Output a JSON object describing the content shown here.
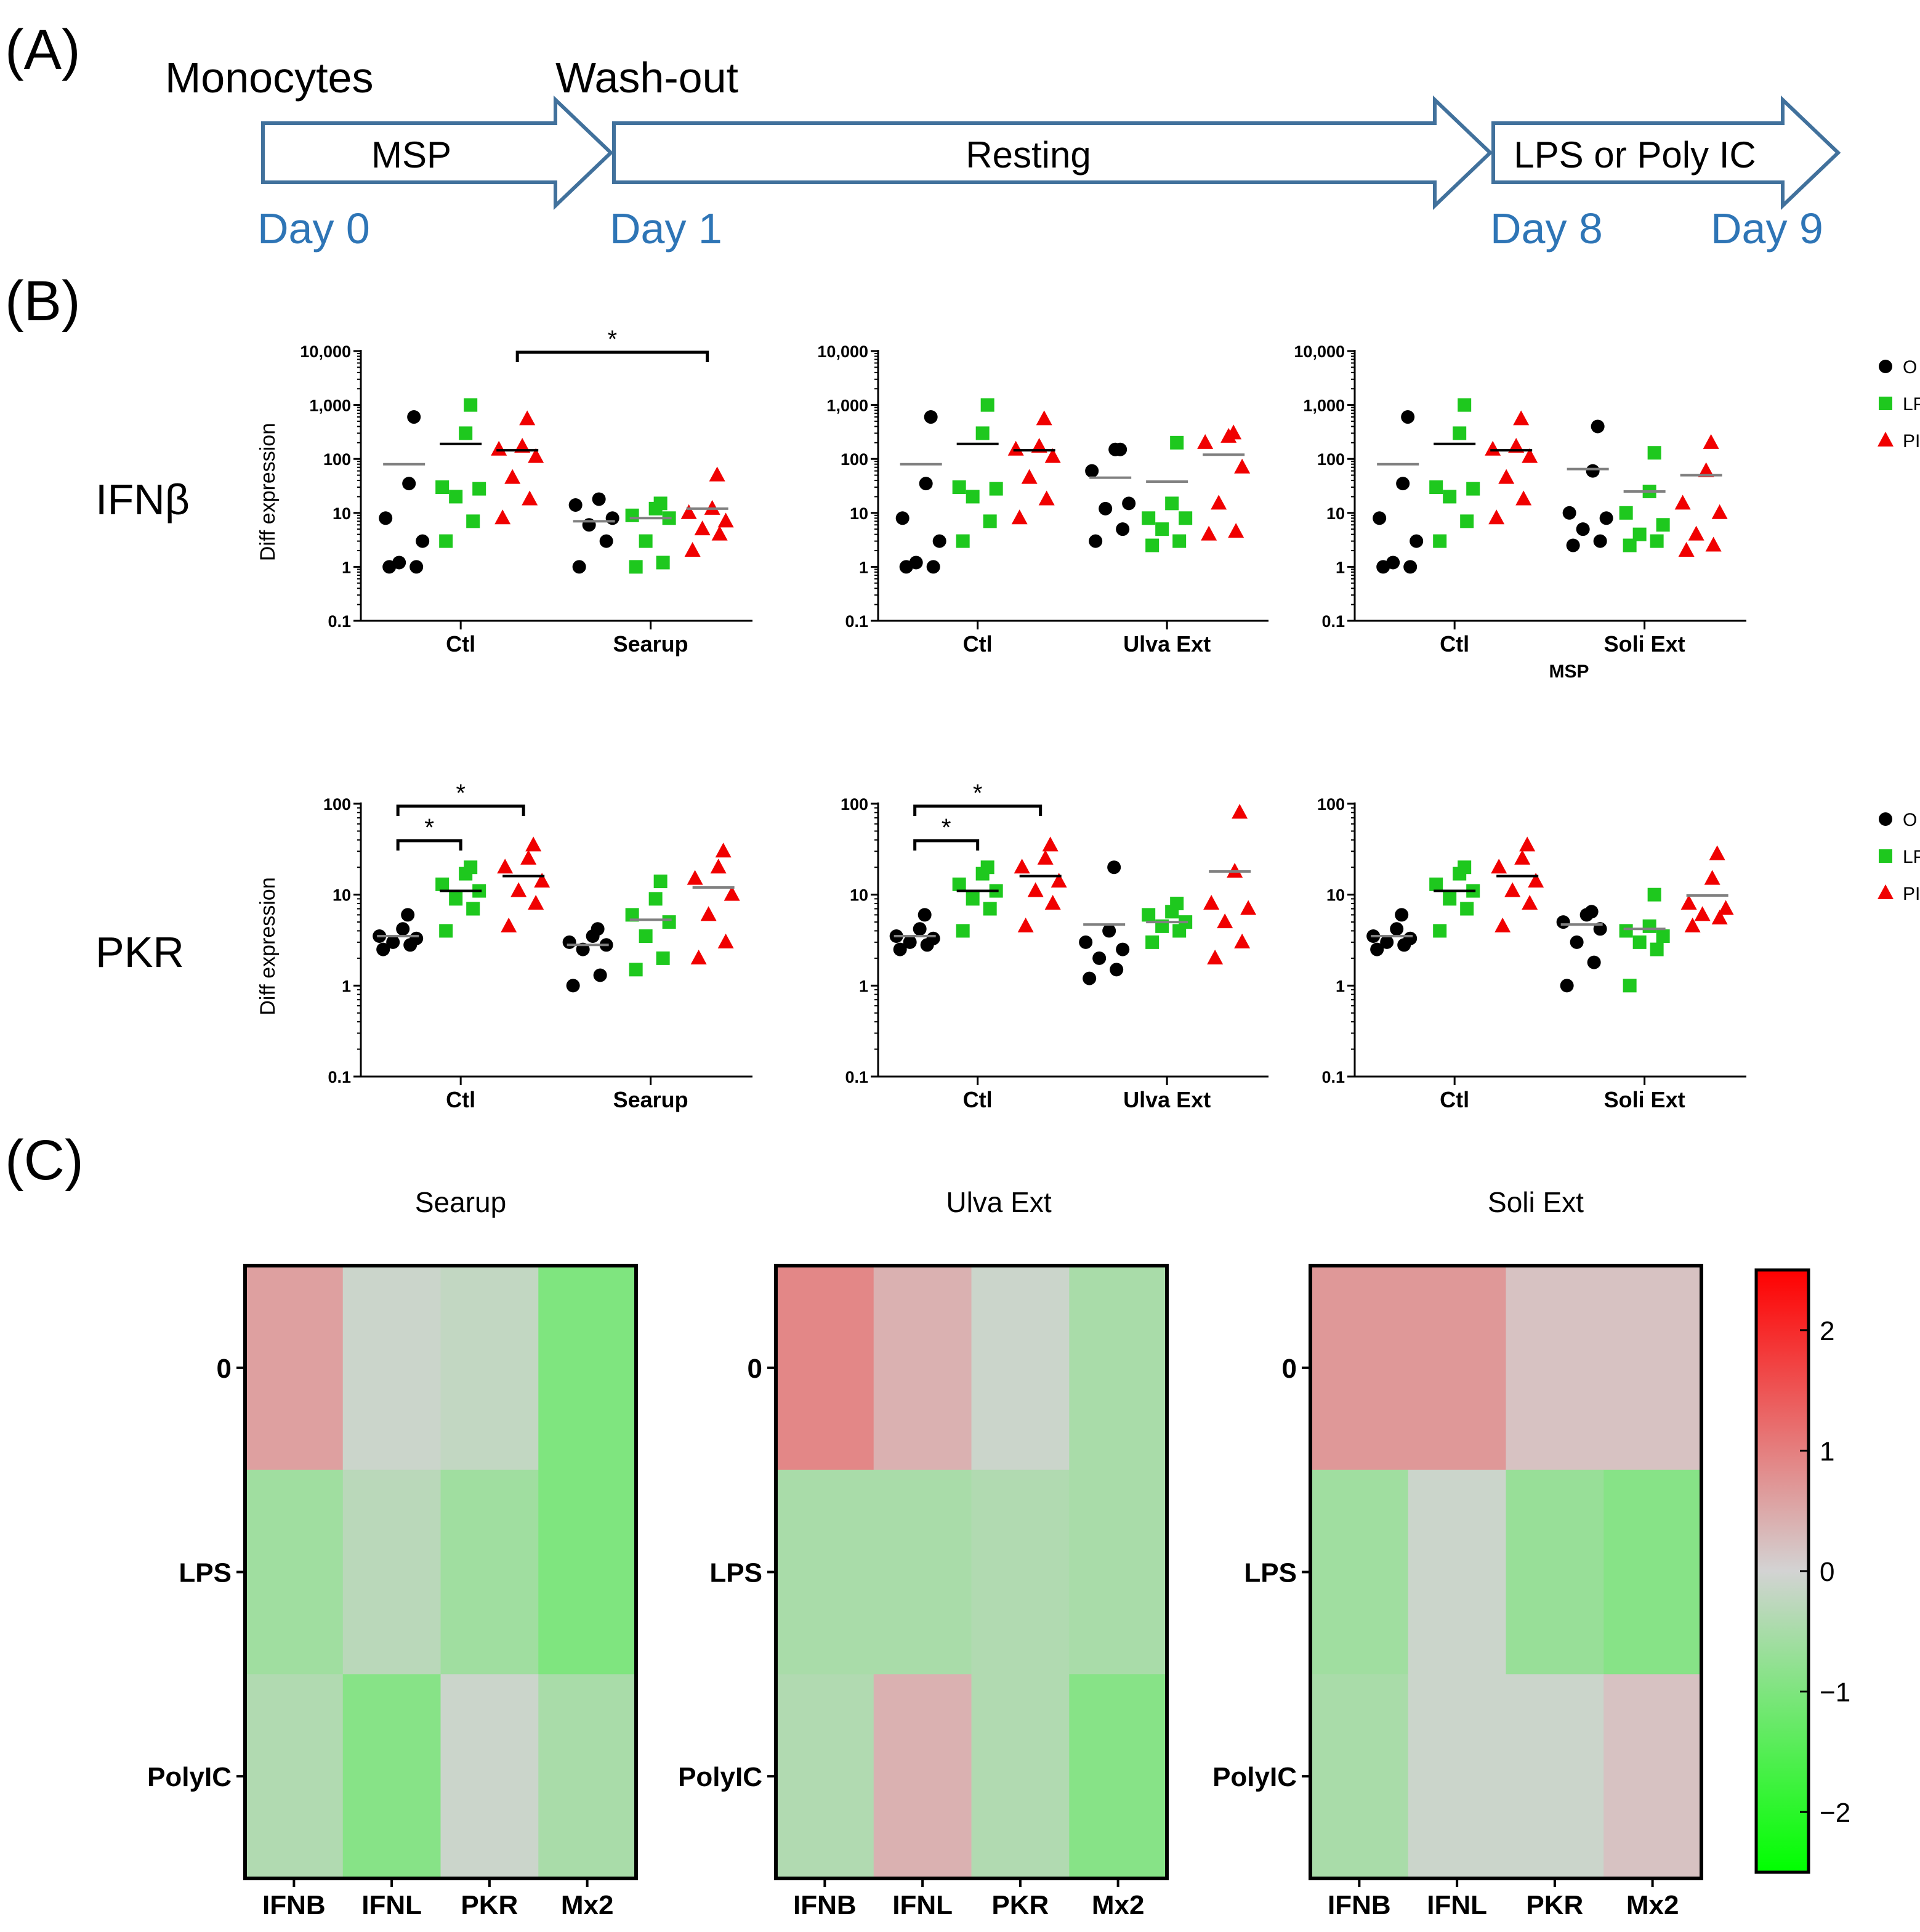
{
  "panel_labels": [
    "(A)",
    "(B)",
    "(C)"
  ],
  "timeline": {
    "labels_top": [
      "Monocytes",
      "Wash-out"
    ],
    "arrows": [
      "MSP",
      "Resting",
      "LPS or Poly IC"
    ],
    "days": [
      "Day 0",
      "Day 1",
      "Day 8",
      "Day 9"
    ],
    "day_color": "#2e75b6",
    "arrow_color": "#41719c"
  },
  "row_labels": [
    "IFNβ",
    "PKR"
  ],
  "colors": {
    "O": "#000000",
    "LPS": "#1ec81e",
    "PIC": "#f00000"
  },
  "legend": [
    "O",
    "LPS",
    "PIC"
  ],
  "extra_label": "MSP",
  "chart_data": [
    {
      "type": "scatter",
      "row": "IFNβ",
      "scale": "log",
      "ylabel": "Diff expression",
      "ylim": [
        0.1,
        10000
      ],
      "yticks": [
        "0.1",
        "1",
        "10",
        "100",
        "1,000",
        "10,000"
      ],
      "groups": [
        "Ctl",
        "Searup"
      ],
      "series": [
        {
          "group": "Ctl",
          "name": "O",
          "values": [
            1,
            1,
            1.2,
            3,
            8,
            35,
            600
          ],
          "mean": 80
        },
        {
          "group": "Ctl",
          "name": "LPS",
          "values": [
            3,
            7,
            20,
            28,
            30,
            300,
            1000
          ],
          "mean": 190
        },
        {
          "group": "Ctl",
          "name": "PIC",
          "values": [
            8,
            18,
            45,
            110,
            150,
            170,
            550
          ],
          "mean": 145
        },
        {
          "group": "Searup",
          "name": "O",
          "values": [
            1,
            3,
            6,
            8,
            14,
            18
          ],
          "mean": 7
        },
        {
          "group": "Searup",
          "name": "LPS",
          "values": [
            1,
            1.2,
            3,
            8,
            9,
            12,
            15
          ],
          "mean": 8
        },
        {
          "group": "Searup",
          "name": "PIC",
          "values": [
            2,
            4,
            5,
            7,
            10,
            12,
            50
          ],
          "mean": 12
        }
      ],
      "significance": [
        {
          "from": "Ctl PIC",
          "to": "Searup PIC",
          "label": "*"
        }
      ]
    },
    {
      "type": "scatter",
      "row": "IFNβ",
      "scale": "log",
      "ylim": [
        0.1,
        10000
      ],
      "yticks": [
        "0.1",
        "1",
        "10",
        "100",
        "1,000",
        "10,000"
      ],
      "groups": [
        "Ctl",
        "Ulva Ext"
      ],
      "series": [
        {
          "group": "Ctl",
          "name": "O",
          "values": [
            1,
            1,
            1.2,
            3,
            8,
            35,
            600
          ],
          "mean": 80
        },
        {
          "group": "Ctl",
          "name": "LPS",
          "values": [
            3,
            7,
            20,
            28,
            30,
            300,
            1000
          ],
          "mean": 190
        },
        {
          "group": "Ctl",
          "name": "PIC",
          "values": [
            8,
            18,
            45,
            110,
            150,
            170,
            550
          ],
          "mean": 145
        },
        {
          "group": "Ulva Ext",
          "name": "O",
          "values": [
            3,
            5,
            12,
            15,
            60,
            150,
            150
          ],
          "mean": 45
        },
        {
          "group": "Ulva Ext",
          "name": "LPS",
          "values": [
            2.5,
            3,
            5,
            8,
            8,
            15,
            200
          ],
          "mean": 38
        },
        {
          "group": "Ulva Ext",
          "name": "PIC",
          "values": [
            4,
            4.5,
            15,
            70,
            200,
            260,
            300
          ],
          "mean": 120
        }
      ]
    },
    {
      "type": "scatter",
      "row": "IFNβ",
      "scale": "log",
      "ylim": [
        0.1,
        10000
      ],
      "yticks": [
        "0.1",
        "1",
        "10",
        "100",
        "1,000",
        "10,000"
      ],
      "groups": [
        "Ctl",
        "Soli Ext"
      ],
      "series": [
        {
          "group": "Ctl",
          "name": "O",
          "values": [
            1,
            1,
            1.2,
            3,
            8,
            35,
            600
          ],
          "mean": 80
        },
        {
          "group": "Ctl",
          "name": "LPS",
          "values": [
            3,
            7,
            20,
            28,
            30,
            300,
            1000
          ],
          "mean": 190
        },
        {
          "group": "Ctl",
          "name": "PIC",
          "values": [
            8,
            18,
            45,
            110,
            150,
            170,
            550
          ],
          "mean": 145
        },
        {
          "group": "Soli Ext",
          "name": "O",
          "values": [
            2.5,
            3,
            5,
            8,
            10,
            60,
            400
          ],
          "mean": 65
        },
        {
          "group": "Soli Ext",
          "name": "LPS",
          "values": [
            2.5,
            3,
            4,
            6,
            10,
            25,
            130
          ],
          "mean": 25
        },
        {
          "group": "Soli Ext",
          "name": "PIC",
          "values": [
            2,
            2.5,
            4,
            10,
            15,
            60,
            200
          ],
          "mean": 50
        }
      ]
    },
    {
      "type": "scatter",
      "row": "PKR",
      "scale": "log",
      "ylabel": "Diff expression",
      "ylim": [
        0.1,
        100
      ],
      "yticks": [
        "0.1",
        "1",
        "10",
        "100"
      ],
      "groups": [
        "Ctl",
        "Searup"
      ],
      "series": [
        {
          "group": "Ctl",
          "name": "O",
          "values": [
            2.5,
            2.8,
            3,
            3.3,
            3.5,
            4.2,
            6
          ],
          "mean": 3.5
        },
        {
          "group": "Ctl",
          "name": "LPS",
          "values": [
            4,
            7,
            9,
            11,
            13,
            17,
            20
          ],
          "mean": 11
        },
        {
          "group": "Ctl",
          "name": "PIC",
          "values": [
            4.5,
            8,
            11,
            14,
            20,
            25,
            35
          ],
          "mean": 16
        },
        {
          "group": "Searup",
          "name": "O",
          "values": [
            1,
            1.3,
            2.5,
            2.8,
            3,
            3.5,
            4.2
          ],
          "mean": 2.8
        },
        {
          "group": "Searup",
          "name": "LPS",
          "values": [
            1.5,
            2,
            3.5,
            5,
            6,
            9,
            14
          ],
          "mean": 5.3
        },
        {
          "group": "Searup",
          "name": "PIC",
          "values": [
            2,
            3,
            6,
            10,
            15,
            20,
            30
          ],
          "mean": 12
        }
      ],
      "significance": [
        {
          "from": "Ctl O",
          "to": "Ctl LPS",
          "label": "*"
        },
        {
          "from": "Ctl O",
          "to": "Ctl PIC",
          "label": "*"
        }
      ]
    },
    {
      "type": "scatter",
      "row": "PKR",
      "scale": "log",
      "ylim": [
        0.1,
        100
      ],
      "yticks": [
        "0.1",
        "1",
        "10",
        "100"
      ],
      "groups": [
        "Ctl",
        "Ulva Ext"
      ],
      "series": [
        {
          "group": "Ctl",
          "name": "O",
          "values": [
            2.5,
            2.8,
            3,
            3.3,
            3.5,
            4.2,
            6
          ],
          "mean": 3.5
        },
        {
          "group": "Ctl",
          "name": "LPS",
          "values": [
            4,
            7,
            9,
            11,
            13,
            17,
            20
          ],
          "mean": 11
        },
        {
          "group": "Ctl",
          "name": "PIC",
          "values": [
            4.5,
            8,
            11,
            14,
            20,
            25,
            35
          ],
          "mean": 16
        },
        {
          "group": "Ulva Ext",
          "name": "O",
          "values": [
            1.2,
            1.5,
            2,
            2.5,
            3,
            4,
            20
          ],
          "mean": 4.7
        },
        {
          "group": "Ulva Ext",
          "name": "LPS",
          "values": [
            3,
            4,
            4.5,
            5,
            6,
            6.5,
            8
          ],
          "mean": 5
        },
        {
          "group": "Ulva Ext",
          "name": "PIC",
          "values": [
            2,
            3,
            5,
            7,
            8,
            18,
            80
          ],
          "mean": 18
        }
      ],
      "significance": [
        {
          "from": "Ctl O",
          "to": "Ctl LPS",
          "label": "*"
        },
        {
          "from": "Ctl O",
          "to": "Ctl PIC",
          "label": "*"
        }
      ]
    },
    {
      "type": "scatter",
      "row": "PKR",
      "scale": "log",
      "ylim": [
        0.1,
        100
      ],
      "yticks": [
        "0.1",
        "1",
        "10",
        "100"
      ],
      "groups": [
        "Ctl",
        "Soli Ext"
      ],
      "series": [
        {
          "group": "Ctl",
          "name": "O",
          "values": [
            2.5,
            2.8,
            3,
            3.3,
            3.5,
            4.2,
            6
          ],
          "mean": 3.5
        },
        {
          "group": "Ctl",
          "name": "LPS",
          "values": [
            4,
            7,
            9,
            11,
            13,
            17,
            20
          ],
          "mean": 11
        },
        {
          "group": "Ctl",
          "name": "PIC",
          "values": [
            4.5,
            8,
            11,
            14,
            20,
            25,
            35
          ],
          "mean": 16
        },
        {
          "group": "Soli Ext",
          "name": "O",
          "values": [
            1,
            1.8,
            3,
            4.2,
            5,
            6,
            6.5
          ],
          "mean": 4.7
        },
        {
          "group": "Soli Ext",
          "name": "LPS",
          "values": [
            1,
            2.5,
            3,
            3.5,
            4,
            4.5,
            10
          ],
          "mean": 4.2
        },
        {
          "group": "Soli Ext",
          "name": "PIC",
          "values": [
            4.5,
            5.5,
            6,
            7,
            8,
            15,
            28
          ],
          "mean": 9.8
        }
      ]
    },
    {
      "type": "heatmap",
      "title": "Searup",
      "rows": [
        "0",
        "LPS",
        "PolyIC"
      ],
      "columns": [
        "IFNB",
        "IFNL",
        "PKR",
        "Mx2"
      ],
      "values": [
        [
          0.6,
          -0.1,
          -0.2,
          -1.0
        ],
        [
          -0.6,
          -0.3,
          -0.6,
          -1.0
        ],
        [
          -0.4,
          -0.9,
          -0.1,
          -0.5
        ]
      ]
    },
    {
      "type": "heatmap",
      "title": "Ulva Ext",
      "rows": [
        "0",
        "LPS",
        "PolyIC"
      ],
      "columns": [
        "IFNB",
        "IFNL",
        "PKR",
        "Mx2"
      ],
      "values": [
        [
          0.9,
          0.4,
          -0.1,
          -0.5
        ],
        [
          -0.5,
          -0.5,
          -0.4,
          -0.5
        ],
        [
          -0.4,
          0.4,
          -0.4,
          -0.9
        ]
      ]
    },
    {
      "type": "heatmap",
      "title": "Soli  Ext",
      "rows": [
        "0",
        "LPS",
        "PolyIC"
      ],
      "columns": [
        "IFNB",
        "IFNL",
        "PKR",
        "Mx2"
      ],
      "values": [
        [
          0.7,
          0.7,
          0.2,
          0.2
        ],
        [
          -0.6,
          -0.1,
          -0.7,
          -0.9
        ],
        [
          -0.5,
          -0.1,
          -0.1,
          0.2
        ]
      ]
    },
    {
      "type": "colorbar",
      "range": [
        -2.5,
        2.5
      ],
      "ticks": [
        "2",
        "1",
        "0",
        "−1",
        "−2"
      ],
      "stops": [
        "#00ff00",
        "#d3d3d3",
        "#ff0000"
      ]
    }
  ]
}
